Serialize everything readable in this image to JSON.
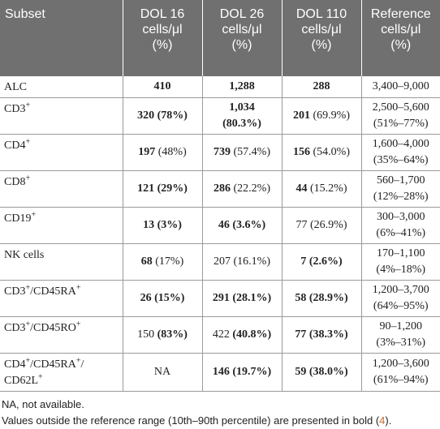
{
  "headers": [
    {
      "line1": "Subset",
      "line2": "",
      "line3": ""
    },
    {
      "line1": "DOL 16",
      "line2": "cells/μl",
      "line3": "(%)"
    },
    {
      "line1": "DOL 26",
      "line2": "cells/μl",
      "line3": "(%)"
    },
    {
      "line1": "DOL 110",
      "line2": "cells/μl",
      "line3": "(%)"
    },
    {
      "line1": "Reference",
      "line2": "cells/μl",
      "line3": "(%)"
    }
  ],
  "rows": [
    {
      "subset": "ALC",
      "sup": "",
      "d16": {
        "v": "410",
        "vb": true,
        "p": "",
        "pb": false
      },
      "d26": {
        "v": "1,288",
        "vb": true,
        "p": "",
        "pb": false
      },
      "d110": {
        "v": "288",
        "vb": true,
        "p": "",
        "pb": false
      },
      "ref": {
        "range": "3,400–9,000",
        "pct": ""
      }
    },
    {
      "subset": "CD3",
      "sup": "+",
      "d16": {
        "v": "320",
        "vb": true,
        "p": "(78%)",
        "pb": true
      },
      "d26": {
        "v": "1,034",
        "vb": true,
        "p": "(80.3%)",
        "pb": true
      },
      "d110": {
        "v": "201",
        "vb": true,
        "p": "(69.9%)",
        "pb": false
      },
      "ref": {
        "range": "2,500–5,600",
        "pct": "(51%–77%)"
      }
    },
    {
      "subset": "CD4",
      "sup": "+",
      "d16": {
        "v": "197",
        "vb": true,
        "p": "(48%)",
        "pb": false
      },
      "d26": {
        "v": "739",
        "vb": true,
        "p": "(57.4%)",
        "pb": false
      },
      "d110": {
        "v": "156",
        "vb": true,
        "p": "(54.0%)",
        "pb": false
      },
      "ref": {
        "range": "1,600–4,000",
        "pct": "(35%–64%)"
      }
    },
    {
      "subset": "CD8",
      "sup": "+",
      "d16": {
        "v": "121",
        "vb": true,
        "p": "(29%)",
        "pb": true
      },
      "d26": {
        "v": "286",
        "vb": true,
        "p": "(22.2%)",
        "pb": false
      },
      "d110": {
        "v": "44",
        "vb": true,
        "p": "(15.2%)",
        "pb": false
      },
      "ref": {
        "range": "560–1,700",
        "pct": "(12%–28%)"
      }
    },
    {
      "subset": "CD19",
      "sup": "+",
      "d16": {
        "v": "13",
        "vb": true,
        "p": "(3%)",
        "pb": true
      },
      "d26": {
        "v": "46",
        "vb": true,
        "p": "(3.6%)",
        "pb": true
      },
      "d110": {
        "v": "77",
        "vb": false,
        "p": "(26.9%)",
        "pb": false
      },
      "ref": {
        "range": "300–3,000",
        "pct": "(6%–41%)"
      }
    },
    {
      "subset": "NK cells",
      "sup": "",
      "d16": {
        "v": "68",
        "vb": true,
        "p": "(17%)",
        "pb": false
      },
      "d26": {
        "v": "207",
        "vb": false,
        "p": "(16.1%)",
        "pb": false
      },
      "d110": {
        "v": "7",
        "vb": true,
        "p": "(2.6%)",
        "pb": true
      },
      "ref": {
        "range": "170–1,100",
        "pct": "(4%–18%)"
      }
    },
    {
      "subset": "CD3/CD45RA",
      "sup": "",
      "d16": {
        "v": "26",
        "vb": true,
        "p": "(15%)",
        "pb": true
      },
      "d26": {
        "v": "291",
        "vb": true,
        "p": "(28.1%)",
        "pb": true
      },
      "d110": {
        "v": "58",
        "vb": true,
        "p": "(28.9%)",
        "pb": true
      },
      "ref": {
        "range": "1,200–3,700",
        "pct": "(64%–95%)"
      }
    },
    {
      "subset": "CD3/CD45RO",
      "sup": "",
      "d16": {
        "v": "150",
        "vb": false,
        "p": "(83%)",
        "pb": true
      },
      "d26": {
        "v": "422",
        "vb": false,
        "p": "(40.8%)",
        "pb": true
      },
      "d110": {
        "v": "77",
        "vb": true,
        "p": "(38.3%)",
        "pb": true
      },
      "ref": {
        "range": "90–1,200",
        "pct": "(3%–31%)"
      }
    },
    {
      "subset": "CD4/CD45RA/CD62L",
      "sup": "",
      "d16": {
        "v": "NA",
        "vb": false,
        "p": "",
        "pb": false
      },
      "d26": {
        "v": "146",
        "vb": true,
        "p": "(19.7%)",
        "pb": true
      },
      "d110": {
        "v": "59",
        "vb": true,
        "p": "(38.0%)",
        "pb": true
      },
      "ref": {
        "range": "1,200–3,600",
        "pct": "(61%–94%)"
      }
    }
  ],
  "footnotes": {
    "na": "NA, not available.",
    "bold_prefix": "Values outside the reference range (10th–90th percentile) are presented in bold (",
    "ref": "4",
    "bold_suffix": ")."
  }
}
